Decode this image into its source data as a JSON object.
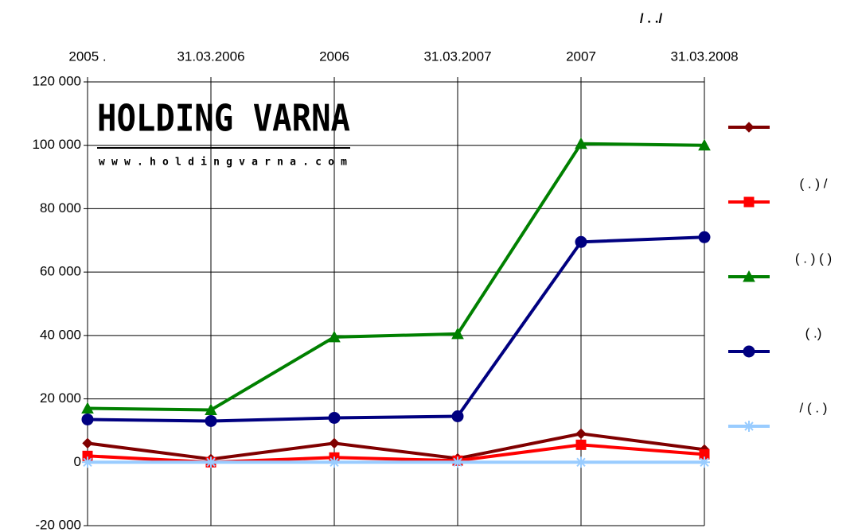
{
  "chart_data": {
    "type": "line",
    "title": "/ . ./",
    "logo": {
      "name": "HOLDING VARNA",
      "url": "www.holdingvarna.com"
    },
    "categories": [
      "2005 .",
      "31.03.2006",
      "2006",
      "31.03.2007",
      "2007",
      "31.03.2008"
    ],
    "series": [
      {
        "color": "#800000",
        "marker": "diamond",
        "values": [
          6000,
          1000,
          6000,
          1200,
          9000,
          4000
        ]
      },
      {
        "name": "( . ) /",
        "color": "#ff0000",
        "marker": "square",
        "values": [
          2000,
          0,
          1500,
          500,
          5500,
          2500
        ]
      },
      {
        "name": "( . ) ( )",
        "color": "#008000",
        "marker": "triangle",
        "values": [
          17000,
          16500,
          39500,
          40500,
          100500,
          100000
        ]
      },
      {
        "name": "( .)",
        "color": "#000080",
        "marker": "circle",
        "values": [
          13500,
          13000,
          14000,
          14500,
          69500,
          71000
        ]
      },
      {
        "name": "/ ( . )",
        "color": "#99ccff",
        "marker": "asterisk",
        "values": [
          0,
          0,
          0,
          0,
          0,
          0
        ]
      }
    ],
    "ylim": [
      -20000,
      120000
    ],
    "yticks": [
      {
        "value": -20000,
        "label": "-20 000"
      },
      0,
      {
        "value": 20000,
        "label": "20 000"
      },
      {
        "value": 40000,
        "label": "40 000"
      },
      {
        "value": 60000,
        "label": "60 000"
      },
      {
        "value": 80000,
        "label": "80 000"
      },
      {
        "value": 100000,
        "label": "100 000"
      },
      {
        "value": 120000,
        "label": "120 000"
      }
    ],
    "grid": true,
    "legend": "right"
  }
}
